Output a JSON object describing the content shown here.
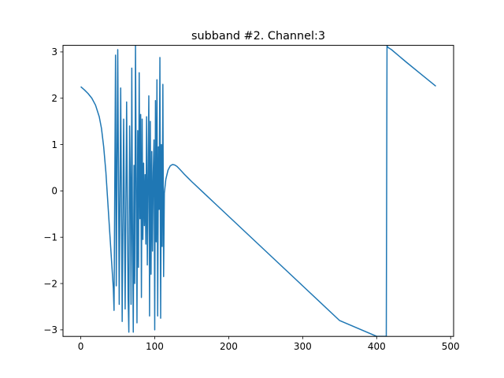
{
  "chart_data": {
    "type": "line",
    "title": "subband #2. Channel:3",
    "xlabel": "",
    "ylabel": "",
    "xlim": [
      -24,
      504
    ],
    "ylim": [
      -3.14159,
      3.14159
    ],
    "x_ticks": [
      0,
      100,
      200,
      300,
      400,
      500
    ],
    "y_ticks": [
      -3,
      -2,
      -1,
      0,
      1,
      2,
      3
    ],
    "grid": false,
    "series": [
      {
        "color": "#1f77b4",
        "x": [
          0,
          5,
          10,
          15,
          20,
          25,
          28,
          31,
          34,
          36,
          38,
          40,
          42,
          44,
          45,
          47,
          48,
          50,
          52,
          54,
          56,
          58,
          60,
          62,
          64,
          65,
          66,
          67,
          68,
          69,
          70,
          71,
          72,
          73,
          74,
          75,
          76,
          77,
          78,
          79,
          80,
          81,
          82,
          83,
          84,
          85,
          86,
          87,
          88,
          89,
          90,
          91,
          92,
          93,
          94,
          95,
          96,
          97,
          98,
          99,
          100,
          101,
          102,
          103,
          104,
          105,
          106,
          107,
          108,
          109,
          110,
          111,
          112,
          113,
          115,
          118,
          121,
          124,
          127,
          130,
          133,
          136,
          140,
          145,
          150,
          160,
          180,
          200,
          250,
          300,
          350,
          400,
          413,
          414,
          415,
          420,
          440,
          460,
          480
        ],
        "y": [
          2.25,
          2.18,
          2.1,
          2.0,
          1.85,
          1.6,
          1.35,
          0.95,
          0.4,
          -0.1,
          -0.6,
          -1.1,
          -1.6,
          -2.1,
          -2.58,
          2.93,
          -2.05,
          3.05,
          -2.45,
          2.22,
          -2.82,
          1.55,
          -2.55,
          1.92,
          -2.3,
          -3.05,
          1.4,
          0.2,
          -2.45,
          2.65,
          -1.05,
          -3.05,
          0.55,
          -2.0,
          3.14,
          0.3,
          -2.85,
          1.3,
          -1.65,
          2.55,
          -0.6,
          1.65,
          -2.3,
          1.55,
          -1.05,
          0.6,
          -0.75,
          0.35,
          -1.15,
          1.6,
          -1.6,
          0.2,
          2.05,
          -2.7,
          1.5,
          -1.8,
          0.85,
          -1.3,
          0.4,
          1.1,
          -3.0,
          1.95,
          -1.1,
          2.4,
          -2.7,
          0.95,
          -0.4,
          2.88,
          -2.75,
          1.0,
          -1.2,
          2.3,
          -1.85,
          -0.05,
          0.25,
          0.45,
          0.54,
          0.57,
          0.56,
          0.53,
          0.48,
          0.43,
          0.36,
          0.28,
          0.2,
          0.05,
          -0.25,
          -0.55,
          -1.3,
          -2.05,
          -2.8,
          -3.14,
          -3.14,
          3.14,
          3.1,
          3.05,
          2.78,
          2.52,
          2.26
        ]
      }
    ]
  }
}
